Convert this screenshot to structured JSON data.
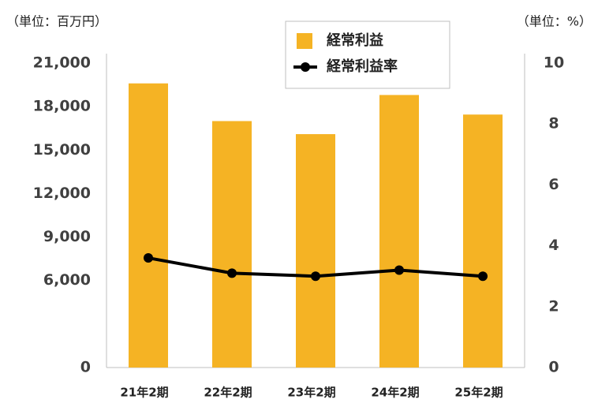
{
  "chart_data": {
    "type": "bar_line",
    "y_unit_label": "（単位：百万円）",
    "y2_unit_label": "（単位：%）",
    "categories": [
      "21年2期",
      "22年2期",
      "23年2期",
      "24年2期",
      "25年2期"
    ],
    "series": [
      {
        "name": "経常利益",
        "type": "bar",
        "color": "#f5b324",
        "values": [
          19600,
          17000,
          16100,
          18800,
          17450
        ]
      },
      {
        "name": "経常利益率",
        "type": "line",
        "axis": "y2",
        "color": "#000000",
        "values": [
          3.6,
          3.1,
          3.0,
          3.2,
          3.0
        ]
      }
    ],
    "ylim": [
      0,
      21000
    ],
    "yticks": [
      0,
      {
        "value": 6000,
        "label": "6,000"
      },
      {
        "value": 9000,
        "label": "9,000"
      },
      {
        "value": 12000,
        "label": "12,000"
      },
      {
        "value": 15000,
        "label": "15,000"
      },
      {
        "value": 18000,
        "label": "18,000"
      },
      {
        "value": 21000,
        "label": "21,000"
      }
    ],
    "y2lim": [
      0,
      10
    ],
    "y2ticks": [
      0,
      2,
      4,
      6,
      8,
      10
    ]
  }
}
